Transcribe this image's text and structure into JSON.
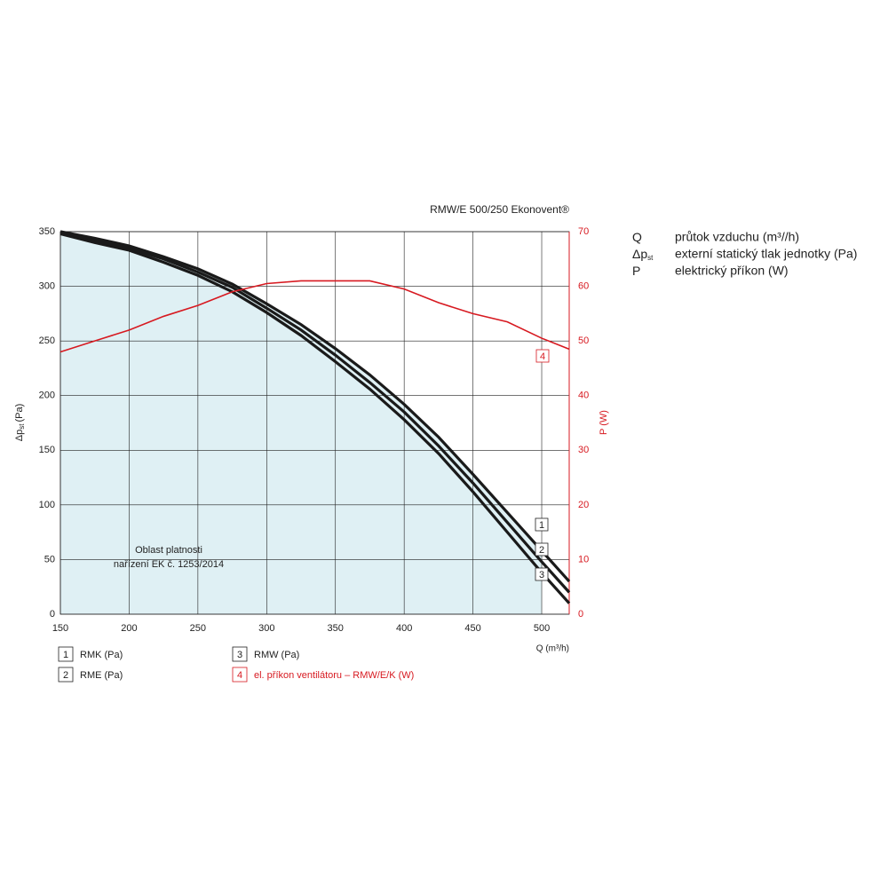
{
  "chart_data": {
    "type": "line",
    "title": "RMW/E 500/250 Ekonovent®",
    "x_label": "Q (m³/h)",
    "y_label": {
      "symbol": "Δp",
      "sub": "st",
      "unit": "(Pa)"
    },
    "y2_label": "P (W)",
    "x": [
      150,
      175,
      200,
      225,
      250,
      275,
      300,
      325,
      350,
      375,
      400,
      425,
      450,
      475,
      500,
      520
    ],
    "series": [
      {
        "number": "1",
        "name": "RMK (Pa)",
        "color": "#1a1a1a",
        "values": [
          350,
          344,
          337,
          327,
          316,
          302,
          284,
          265,
          243,
          219,
          192,
          162,
          128,
          93,
          58,
          30
        ]
      },
      {
        "number": "2",
        "name": "RME (Pa)",
        "color": "#1a1a1a",
        "values": [
          349,
          342,
          335,
          325,
          313,
          299,
          280,
          260,
          237,
          212,
          185,
          154,
          120,
          84,
          48,
          20
        ]
      },
      {
        "number": "3",
        "name": "RMW (Pa)",
        "color": "#1a1a1a",
        "values": [
          348,
          340,
          333,
          322,
          310,
          295,
          276,
          255,
          231,
          206,
          178,
          147,
          112,
          75,
          38,
          10
        ]
      },
      {
        "number": "4",
        "name": "el. příkon ventilátoru – RMW/E/K (W)",
        "color": "#d71920",
        "axis": "y2",
        "values": [
          48,
          50,
          52,
          54.5,
          56.5,
          59,
          60.5,
          61,
          61,
          61,
          59.5,
          57,
          55,
          53.5,
          50.5,
          48.5
        ]
      }
    ],
    "xlim": [
      150,
      520
    ],
    "xticks": [
      150,
      200,
      250,
      300,
      350,
      400,
      450,
      500
    ],
    "ylim": [
      0,
      350
    ],
    "yticks": [
      0,
      50,
      100,
      150,
      200,
      250,
      300,
      350
    ],
    "y2lim": [
      0,
      70
    ],
    "y2ticks": [
      0,
      10,
      20,
      30,
      40,
      50,
      60,
      70
    ],
    "grid": true,
    "shaded_region": {
      "lines": [
        "Oblast platnosti",
        "nařízení EK č. 1253/2014"
      ],
      "xlim": [
        150,
        500
      ],
      "color": "#dff0f4"
    }
  },
  "definitions": [
    {
      "symbol": "Q",
      "text": "průtok vzduchu (m³//h)"
    },
    {
      "symbol": "Δp",
      "sub": "st",
      "text": "externí statický tlak jednotky (Pa)"
    },
    {
      "symbol": "P",
      "text": "elektrický příkon (W)"
    }
  ]
}
